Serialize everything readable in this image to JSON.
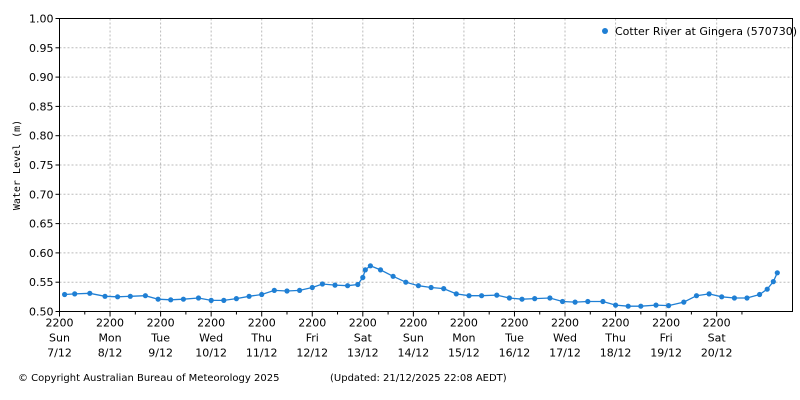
{
  "footer": {
    "copyright": "© Copyright Australian Bureau of Meteorology 2025",
    "updated": "(Updated: 21/12/2025 22:08 AEDT)"
  },
  "chart_data": {
    "type": "line",
    "title": "",
    "xlabel": "",
    "ylabel": "Water Level (m)",
    "ylim": [
      0.5,
      1.0
    ],
    "yticks": [
      "0.50",
      "0.55",
      "0.60",
      "0.65",
      "0.70",
      "0.75",
      "0.80",
      "0.85",
      "0.90",
      "0.95",
      "1.00"
    ],
    "xlim_days": [
      0,
      14.5
    ],
    "xticks": [
      {
        "time": "2200",
        "day": "Sun",
        "date": "7/12"
      },
      {
        "time": "2200",
        "day": "Mon",
        "date": "8/12"
      },
      {
        "time": "2200",
        "day": "Tue",
        "date": "9/12"
      },
      {
        "time": "2200",
        "day": "Wed",
        "date": "10/12"
      },
      {
        "time": "2200",
        "day": "Thu",
        "date": "11/12"
      },
      {
        "time": "2200",
        "day": "Fri",
        "date": "12/12"
      },
      {
        "time": "2200",
        "day": "Sat",
        "date": "13/12"
      },
      {
        "time": "2200",
        "day": "Sun",
        "date": "14/12"
      },
      {
        "time": "2200",
        "day": "Mon",
        "date": "15/12"
      },
      {
        "time": "2200",
        "day": "Tue",
        "date": "16/12"
      },
      {
        "time": "2200",
        "day": "Wed",
        "date": "17/12"
      },
      {
        "time": "2200",
        "day": "Thu",
        "date": "18/12"
      },
      {
        "time": "2200",
        "day": "Fri",
        "date": "19/12"
      },
      {
        "time": "2200",
        "day": "Sat",
        "date": "20/12"
      }
    ],
    "grid": true,
    "legend_position": "top-right",
    "series": [
      {
        "name": "Cotter River at Gingera (570730)",
        "color": "#1f7fd4",
        "points": [
          [
            0.1,
            0.529
          ],
          [
            0.3,
            0.53
          ],
          [
            0.6,
            0.531
          ],
          [
            0.9,
            0.526
          ],
          [
            1.15,
            0.525
          ],
          [
            1.4,
            0.526
          ],
          [
            1.7,
            0.527
          ],
          [
            1.95,
            0.521
          ],
          [
            2.2,
            0.52
          ],
          [
            2.45,
            0.521
          ],
          [
            2.75,
            0.523
          ],
          [
            3.0,
            0.519
          ],
          [
            3.25,
            0.519
          ],
          [
            3.5,
            0.522
          ],
          [
            3.75,
            0.526
          ],
          [
            4.0,
            0.529
          ],
          [
            4.25,
            0.536
          ],
          [
            4.5,
            0.535
          ],
          [
            4.75,
            0.536
          ],
          [
            5.0,
            0.541
          ],
          [
            5.2,
            0.547
          ],
          [
            5.45,
            0.545
          ],
          [
            5.7,
            0.544
          ],
          [
            5.9,
            0.546
          ],
          [
            6.0,
            0.558
          ],
          [
            6.05,
            0.571
          ],
          [
            6.15,
            0.578
          ],
          [
            6.35,
            0.571
          ],
          [
            6.6,
            0.56
          ],
          [
            6.85,
            0.55
          ],
          [
            7.1,
            0.544
          ],
          [
            7.35,
            0.541
          ],
          [
            7.6,
            0.539
          ],
          [
            7.85,
            0.53
          ],
          [
            8.1,
            0.527
          ],
          [
            8.35,
            0.527
          ],
          [
            8.65,
            0.528
          ],
          [
            8.9,
            0.523
          ],
          [
            9.15,
            0.521
          ],
          [
            9.4,
            0.522
          ],
          [
            9.7,
            0.523
          ],
          [
            9.95,
            0.517
          ],
          [
            10.2,
            0.516
          ],
          [
            10.45,
            0.517
          ],
          [
            10.75,
            0.517
          ],
          [
            11.0,
            0.511
          ],
          [
            11.25,
            0.509
          ],
          [
            11.5,
            0.509
          ],
          [
            11.8,
            0.511
          ],
          [
            12.05,
            0.51
          ],
          [
            12.35,
            0.516
          ],
          [
            12.6,
            0.527
          ],
          [
            12.85,
            0.53
          ],
          [
            13.1,
            0.525
          ],
          [
            13.35,
            0.523
          ],
          [
            13.6,
            0.523
          ],
          [
            13.85,
            0.529
          ],
          [
            14.0,
            0.538
          ],
          [
            14.12,
            0.551
          ],
          [
            14.2,
            0.566
          ]
        ]
      }
    ]
  }
}
